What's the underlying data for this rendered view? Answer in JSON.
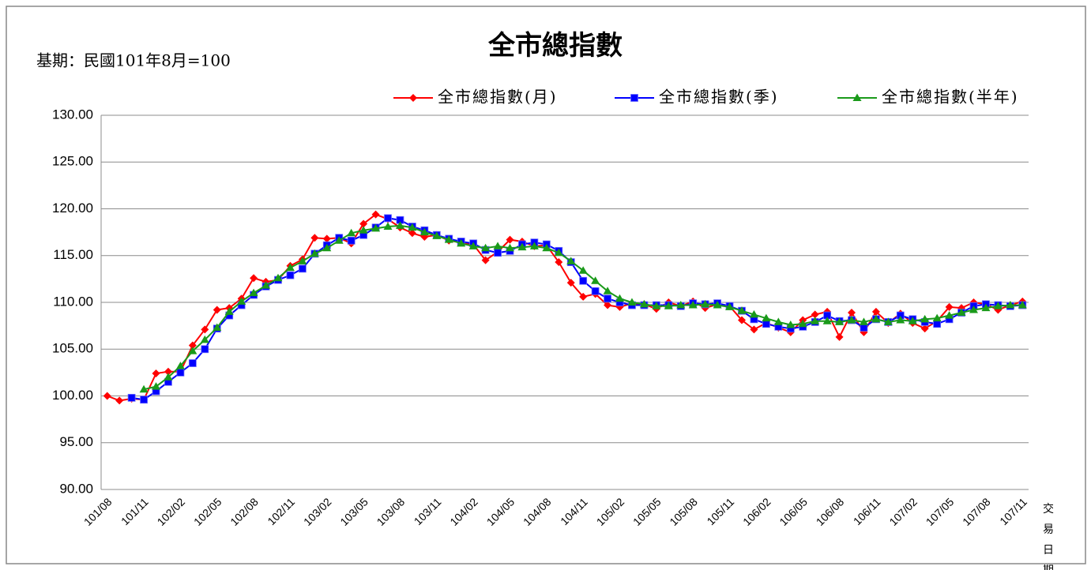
{
  "chart_data": {
    "type": "line",
    "title": "全市總指數",
    "subtitle": "基期：民國101年8月=100",
    "x_label": "交易日期",
    "categories": [
      "101/08",
      null,
      null,
      "101/11",
      null,
      null,
      "102/02",
      null,
      null,
      "102/05",
      null,
      null,
      "102/08",
      null,
      null,
      "102/11",
      null,
      null,
      "103/02",
      null,
      null,
      "103/05",
      null,
      null,
      "103/08",
      null,
      null,
      "103/11",
      null,
      null,
      "104/02",
      null,
      null,
      "104/05",
      null,
      null,
      "104/08",
      null,
      null,
      "104/11",
      null,
      null,
      "105/02",
      null,
      null,
      "105/05",
      null,
      null,
      "105/08",
      null,
      null,
      "105/11",
      null,
      null,
      "106/02",
      null,
      null,
      "106/05",
      null,
      null,
      "106/08",
      null,
      null,
      "106/11",
      null,
      null,
      "107/02",
      null,
      null,
      "107/05",
      null,
      null,
      "107/08",
      null,
      null,
      "107/11"
    ],
    "series": [
      {
        "name": "全市總指數(月)",
        "color": "#ff0000",
        "marker": "diamond",
        "values": [
          100.0,
          99.5,
          99.7,
          99.6,
          102.4,
          102.6,
          102.6,
          105.4,
          107.1,
          109.2,
          109.4,
          110.4,
          112.6,
          112.2,
          112.4,
          113.9,
          114.6,
          116.9,
          116.8,
          116.9,
          116.3,
          118.4,
          119.4,
          118.9,
          118.0,
          117.4,
          117.0,
          117.2,
          116.6,
          116.4,
          116.2,
          114.5,
          115.4,
          116.7,
          116.5,
          116.0,
          116.1,
          114.3,
          112.1,
          110.6,
          110.9,
          109.7,
          109.5,
          109.9,
          109.8,
          109.3,
          110.0,
          109.6,
          110.1,
          109.4,
          109.8,
          109.6,
          108.1,
          107.1,
          107.8,
          107.3,
          106.8,
          108.1,
          108.7,
          109.0,
          106.3,
          108.9,
          106.8,
          109.0,
          107.8,
          108.8,
          107.8,
          107.2,
          108.0,
          109.5,
          109.4,
          110.0,
          109.8,
          109.2,
          109.7,
          110.1
        ]
      },
      {
        "name": "全市總指數(季)",
        "color": "#0000ff",
        "marker": "square",
        "values": [
          null,
          null,
          99.8,
          99.6,
          100.5,
          101.5,
          102.5,
          103.5,
          105.0,
          107.2,
          108.6,
          109.7,
          110.8,
          111.7,
          112.4,
          112.9,
          113.6,
          115.2,
          116.1,
          116.9,
          116.6,
          117.2,
          118.0,
          119.0,
          118.8,
          118.1,
          117.7,
          117.2,
          116.8,
          116.5,
          116.3,
          115.6,
          115.3,
          115.5,
          116.2,
          116.4,
          116.2,
          115.5,
          114.3,
          112.3,
          111.2,
          110.4,
          110.0,
          109.7,
          109.7,
          109.7,
          109.7,
          109.6,
          109.9,
          109.8,
          109.9,
          109.6,
          109.1,
          108.2,
          107.7,
          107.4,
          107.2,
          107.4,
          107.9,
          108.6,
          108.0,
          108.1,
          107.3,
          108.2,
          107.9,
          108.6,
          108.2,
          107.9,
          107.7,
          108.2,
          108.9,
          109.6,
          109.8,
          109.7,
          109.6,
          109.7
        ]
      },
      {
        "name": "全市總指數(半年)",
        "color": "#1a9a1a",
        "marker": "triangle",
        "values": [
          null,
          null,
          null,
          100.7,
          101.0,
          102.0,
          103.2,
          104.8,
          106.0,
          107.3,
          109.0,
          110.1,
          111.0,
          111.8,
          112.6,
          113.7,
          114.4,
          115.2,
          115.8,
          116.6,
          117.4,
          117.7,
          117.9,
          118.1,
          118.2,
          118.0,
          117.5,
          117.1,
          116.7,
          116.3,
          116.0,
          115.8,
          116.0,
          115.8,
          115.9,
          116.0,
          115.8,
          115.3,
          114.4,
          113.4,
          112.3,
          111.2,
          110.4,
          110.0,
          109.8,
          109.6,
          109.6,
          109.7,
          109.7,
          109.8,
          109.7,
          109.5,
          109.1,
          108.7,
          108.3,
          107.9,
          107.6,
          107.7,
          108.0,
          108.0,
          107.9,
          108.1,
          107.9,
          108.2,
          107.9,
          108.1,
          108.0,
          108.2,
          108.3,
          108.6,
          108.9,
          109.2,
          109.4,
          109.6,
          109.7,
          109.7
        ]
      }
    ],
    "ylim": [
      90,
      130
    ],
    "yticks": [
      {
        "value": 90,
        "label": "90.00"
      },
      {
        "value": 95,
        "label": "95.00"
      },
      {
        "value": 100,
        "label": "100.00"
      },
      {
        "value": 105,
        "label": "105.00"
      },
      {
        "value": 110,
        "label": "110.00"
      },
      {
        "value": 115,
        "label": "115.00"
      },
      {
        "value": 120,
        "label": "120.00"
      },
      {
        "value": 125,
        "label": "125.00"
      },
      {
        "value": 130,
        "label": "130.00"
      }
    ],
    "grid": true
  }
}
